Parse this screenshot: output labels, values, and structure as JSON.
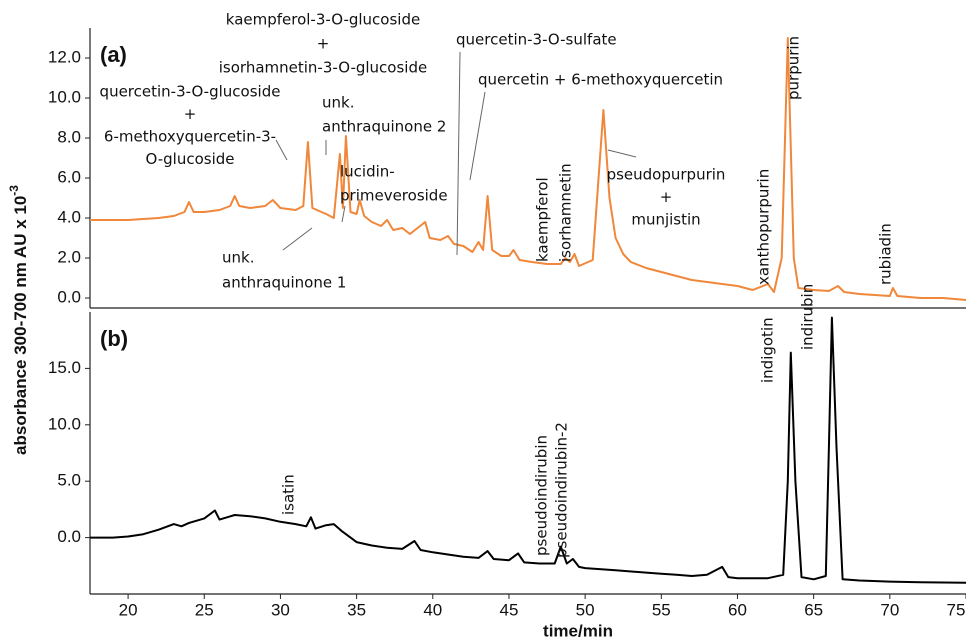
{
  "ylabel": {
    "text": "absorbance 300-700 nm AU x 10",
    "exponent": "-3"
  },
  "chart_data": [
    {
      "type": "line",
      "panel": "(a)",
      "color": "#f0873a",
      "xlim": [
        17.5,
        75
      ],
      "ylim": [
        -0.5,
        13.5
      ],
      "yticks": [
        {
          "value": 0,
          "label": "0.0"
        },
        {
          "value": 2,
          "label": "2.0"
        },
        {
          "value": 4,
          "label": "4.0"
        },
        {
          "value": 6,
          "label": "6.0"
        },
        {
          "value": 8,
          "label": "8.0"
        },
        {
          "value": 10,
          "label": "10.0"
        },
        {
          "value": 12,
          "label": "12.0"
        }
      ],
      "x": [
        17.5,
        19,
        20,
        21,
        22,
        23,
        23.7,
        24,
        24.3,
        25,
        26,
        26.7,
        27,
        27.3,
        28,
        29,
        29.5,
        30,
        31,
        31.5,
        31.8,
        32.1,
        33,
        33.5,
        33.9,
        34.1,
        34.3,
        34.6,
        35,
        35.2,
        35.5,
        36,
        36.6,
        37,
        37.4,
        38,
        38.5,
        39.5,
        39.8,
        40.5,
        41,
        41.4,
        42,
        42.6,
        43,
        43.3,
        43.6,
        43.9,
        44.5,
        45,
        45.3,
        45.7,
        46.5,
        47.5,
        48.4,
        48.7,
        49,
        49.3,
        49.6,
        50.5,
        51.2,
        51.6,
        52,
        52.5,
        53,
        54,
        55,
        56,
        57,
        58,
        59,
        60,
        61,
        62,
        62.4,
        62.9,
        63.3,
        63.7,
        64,
        65,
        66,
        66.6,
        67,
        68,
        69,
        70,
        70.2,
        70.5,
        72,
        73.5,
        75
      ],
      "values": [
        3.9,
        3.9,
        3.9,
        3.95,
        4.0,
        4.1,
        4.3,
        4.8,
        4.3,
        4.3,
        4.4,
        4.6,
        5.1,
        4.6,
        4.5,
        4.6,
        4.9,
        4.5,
        4.4,
        4.6,
        7.8,
        4.5,
        4.2,
        4.0,
        7.2,
        4.5,
        8.1,
        4.3,
        4.2,
        4.9,
        4.1,
        3.8,
        3.6,
        3.9,
        3.4,
        3.5,
        3.2,
        3.8,
        3.0,
        2.9,
        3.1,
        2.7,
        2.6,
        2.3,
        2.8,
        2.4,
        5.1,
        2.4,
        2.1,
        2.1,
        2.4,
        1.9,
        1.8,
        1.7,
        1.7,
        2.0,
        1.8,
        2.2,
        1.6,
        1.9,
        9.4,
        5.0,
        3.0,
        2.2,
        1.8,
        1.5,
        1.3,
        1.1,
        0.9,
        0.8,
        0.7,
        0.6,
        0.4,
        0.7,
        0.3,
        2.0,
        13.0,
        2.0,
        0.5,
        0.4,
        0.35,
        0.6,
        0.3,
        0.2,
        0.15,
        0.1,
        0.5,
        0.1,
        0.0,
        0.0,
        -0.1
      ],
      "annotations": [
        [
          "quercetin-3-O-glucoside",
          "+",
          "6-methoxyquercetin-3-",
          "O-glucoside"
        ],
        [
          "kaempferol-3-O-glucoside",
          "+",
          "isorhamnetin-3-O-glucoside"
        ],
        [
          "unk.",
          "anthraquinone 2"
        ],
        [
          "lucidin-",
          "primeveroside"
        ],
        [
          "unk.",
          "anthraquinone 1"
        ],
        [
          "quercetin-3-O-sulfate"
        ],
        [
          "quercetin + 6-methoxyquercetin"
        ],
        [
          "kaempferol"
        ],
        [
          "isorhamnetin"
        ],
        [
          "pseudopurpurin",
          "+",
          "munjistin"
        ],
        [
          "xanthopurpurin"
        ],
        [
          "purpurin"
        ],
        [
          "rubiadin"
        ]
      ]
    },
    {
      "type": "line",
      "panel": "(b)",
      "color": "#000000",
      "xlim": [
        17.5,
        75
      ],
      "ylim": [
        -5,
        20
      ],
      "xticks": [
        20,
        25,
        30,
        35,
        40,
        45,
        50,
        55,
        60,
        65,
        70,
        75
      ],
      "xlabel": "time/min",
      "yticks": [
        {
          "value": 0,
          "label": "0.0"
        },
        {
          "value": 5,
          "label": "5.0"
        },
        {
          "value": 10,
          "label": "10.0"
        },
        {
          "value": 15,
          "label": "15.0"
        }
      ],
      "x": [
        17.5,
        19,
        20,
        21,
        22,
        23,
        23.5,
        24,
        25,
        25.7,
        26,
        26.5,
        27,
        28,
        29,
        30,
        31,
        31.7,
        32,
        32.3,
        33,
        33.5,
        34,
        35,
        36,
        37,
        38,
        38.8,
        39.2,
        40,
        41,
        42,
        43,
        43.6,
        44,
        45,
        45.6,
        46,
        47,
        48,
        48.4,
        48.8,
        49.2,
        49.6,
        50,
        52,
        54,
        55,
        56,
        57,
        58,
        59,
        59.4,
        60,
        62,
        63,
        63.3,
        63.5,
        63.8,
        64.2,
        65,
        65.8,
        66,
        66.2,
        66.5,
        66.9,
        68,
        70,
        72,
        75
      ],
      "values": [
        0.0,
        0.0,
        0.1,
        0.3,
        0.7,
        1.2,
        1.0,
        1.3,
        1.7,
        2.4,
        1.6,
        1.8,
        2.0,
        1.9,
        1.7,
        1.4,
        1.2,
        1.0,
        1.8,
        0.8,
        1.1,
        1.2,
        0.6,
        -0.4,
        -0.7,
        -0.9,
        -1.0,
        -0.3,
        -1.1,
        -1.3,
        -1.5,
        -1.7,
        -1.8,
        -1.2,
        -1.9,
        -2.0,
        -1.4,
        -2.2,
        -2.3,
        -2.3,
        -0.8,
        -2.3,
        -1.9,
        -2.6,
        -2.7,
        -2.9,
        -3.1,
        -3.2,
        -3.3,
        -3.4,
        -3.3,
        -2.6,
        -3.5,
        -3.6,
        -3.6,
        -3.3,
        5,
        16.4,
        5,
        -3.5,
        -3.7,
        -3.4,
        8,
        19.5,
        8,
        -3.7,
        -3.8,
        -3.9,
        -3.95,
        -4.0
      ],
      "annotations": [
        [
          "isatin"
        ],
        [
          "pseudoindirubin"
        ],
        [
          "pseudoindirubin-2"
        ],
        [
          "indigotin"
        ],
        [
          "indirubin"
        ]
      ]
    }
  ]
}
